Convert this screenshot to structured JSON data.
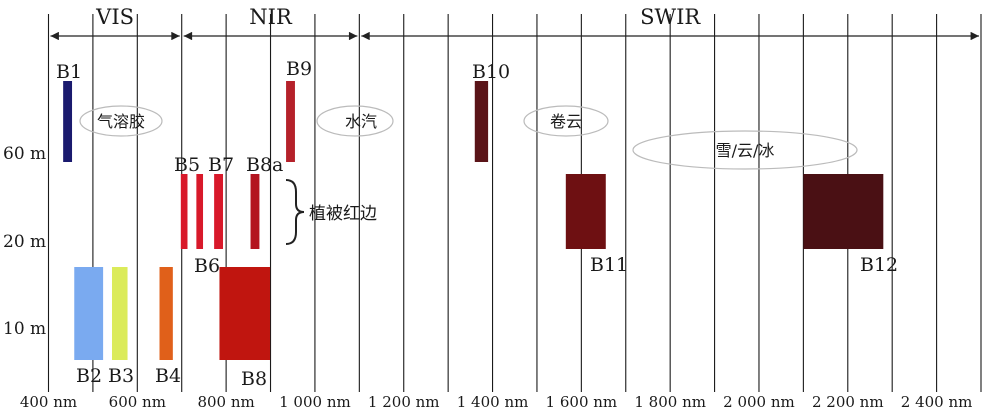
{
  "regions": [
    {
      "name": "VIS",
      "from": 400,
      "to": 700
    },
    {
      "name": "NIR",
      "from": 700,
      "to": 1100
    },
    {
      "name": "SWIR",
      "from": 1100,
      "to": 2500
    }
  ],
  "x_axis": {
    "min": 400,
    "max": 2500,
    "gridlines": [
      400,
      500,
      600,
      700,
      800,
      900,
      1000,
      1100,
      1200,
      1300,
      1400,
      1500,
      1600,
      1700,
      1800,
      1900,
      2000,
      2100,
      2200,
      2300,
      2400,
      2500
    ],
    "tick_labels": [
      {
        "value": 400,
        "text": "400 nm"
      },
      {
        "value": 600,
        "text": "600 nm"
      },
      {
        "value": 800,
        "text": "800 nm"
      },
      {
        "value": 1000,
        "text": "1 000 nm"
      },
      {
        "value": 1200,
        "text": "1 200 nm"
      },
      {
        "value": 1400,
        "text": "1 400 nm"
      },
      {
        "value": 1600,
        "text": "1 600 nm"
      },
      {
        "value": 1800,
        "text": "1 800 nm"
      },
      {
        "value": 2000,
        "text": "2 000 nm"
      },
      {
        "value": 2200,
        "text": "2 200 nm"
      },
      {
        "value": 2400,
        "text": "2 400 nm"
      }
    ]
  },
  "resolution_labels": [
    "60 m",
    "20 m",
    "10 m"
  ],
  "bands": [
    {
      "name": "B1",
      "from": 433,
      "to": 453,
      "resolution": "60 m",
      "color": "#1a1a6e"
    },
    {
      "name": "B2",
      "from": 458,
      "to": 523,
      "resolution": "10 m",
      "color": "#7aaaf0"
    },
    {
      "name": "B3",
      "from": 543,
      "to": 578,
      "resolution": "10 m",
      "color": "#dbeb5a"
    },
    {
      "name": "B4",
      "from": 650,
      "to": 680,
      "resolution": "10 m",
      "color": "#e0601a"
    },
    {
      "name": "B5",
      "from": 698,
      "to": 713,
      "resolution": "20 m",
      "color": "#d8192a"
    },
    {
      "name": "B6",
      "from": 733,
      "to": 748,
      "resolution": "20 m",
      "color": "#d8192a"
    },
    {
      "name": "B7",
      "from": 773,
      "to": 793,
      "resolution": "20 m",
      "color": "#d8192a"
    },
    {
      "name": "B8",
      "from": 785,
      "to": 899,
      "resolution": "10 m",
      "color": "#c0150f"
    },
    {
      "name": "B8a",
      "from": 855,
      "to": 875,
      "resolution": "20 m",
      "color": "#b3141f"
    },
    {
      "name": "B9",
      "from": 935,
      "to": 955,
      "resolution": "60 m",
      "color": "#b5212a"
    },
    {
      "name": "B10",
      "from": 1360,
      "to": 1390,
      "resolution": "60 m",
      "color": "#5a1418"
    },
    {
      "name": "B11",
      "from": 1565,
      "to": 1655,
      "resolution": "20 m",
      "color": "#6e1012"
    },
    {
      "name": "B12",
      "from": 2100,
      "to": 2280,
      "resolution": "20 m",
      "color": "#4a1014"
    }
  ],
  "annotations": [
    {
      "text": "气溶胶",
      "type": "ellipse"
    },
    {
      "text": "水汽",
      "type": "ellipse"
    },
    {
      "text": "卷云",
      "type": "ellipse"
    },
    {
      "text": "雪/云/冰",
      "type": "ellipse"
    },
    {
      "text": "植被红边",
      "type": "brace"
    }
  ]
}
